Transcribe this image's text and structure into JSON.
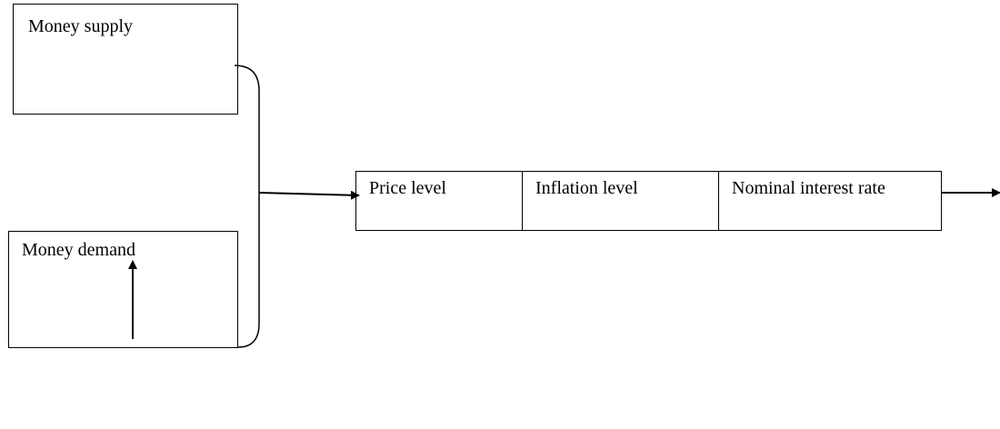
{
  "nodes": [
    {
      "label": "Money supply"
    },
    {
      "label": "Money demand"
    },
    {
      "label": "Price level"
    },
    {
      "label": "Inflation level"
    },
    {
      "label": "Nominal interest rate"
    }
  ]
}
